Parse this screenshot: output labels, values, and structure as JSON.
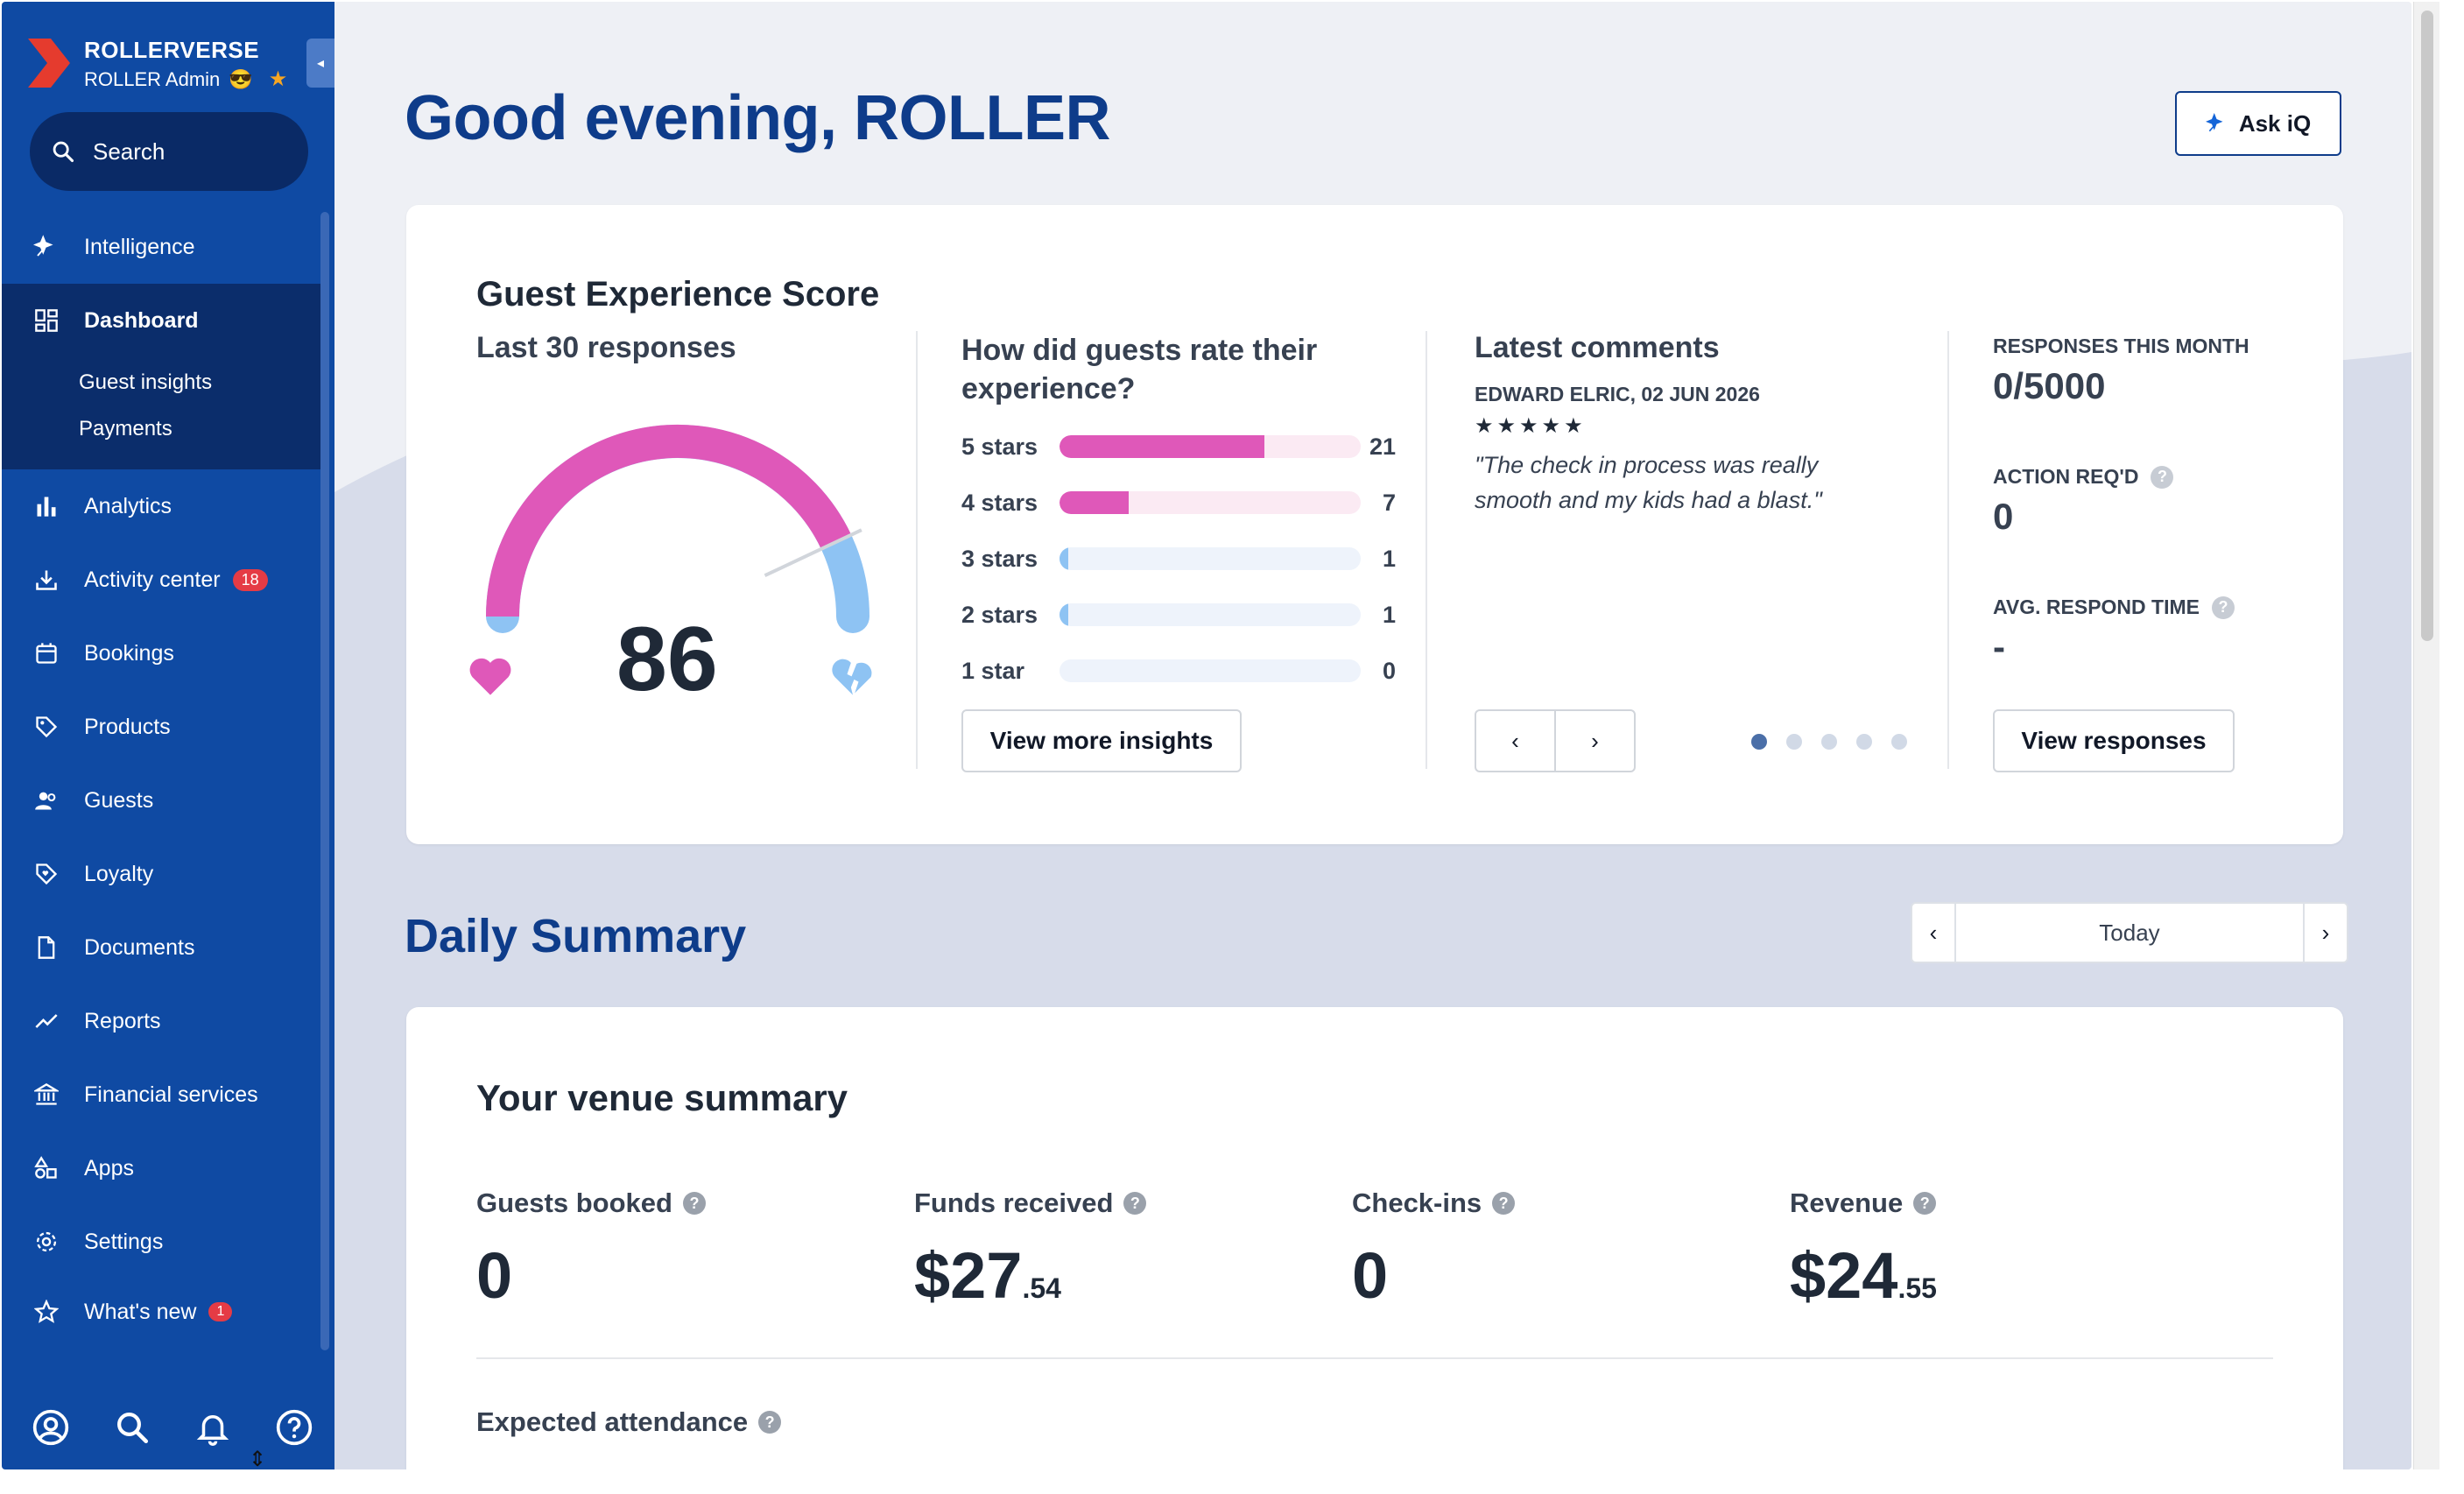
{
  "sidebar": {
    "brand_name": "ROLLERVERSE",
    "brand_role": "ROLLER Admin",
    "role_emoji": "😎",
    "search_label": "Search",
    "items": [
      {
        "label": "Intelligence",
        "icon": "intelligence-icon"
      },
      {
        "label": "Dashboard",
        "icon": "dashboard-icon"
      },
      {
        "label": "Analytics",
        "icon": "bar-chart-icon"
      },
      {
        "label": "Activity center",
        "icon": "download-icon",
        "badge": "18"
      },
      {
        "label": "Bookings",
        "icon": "calendar-icon"
      },
      {
        "label": "Products",
        "icon": "tag-icon"
      },
      {
        "label": "Guests",
        "icon": "people-icon"
      },
      {
        "label": "Loyalty",
        "icon": "loyalty-tag-icon"
      },
      {
        "label": "Documents",
        "icon": "document-icon"
      },
      {
        "label": "Reports",
        "icon": "trend-icon"
      },
      {
        "label": "Financial services",
        "icon": "bank-icon"
      },
      {
        "label": "Apps",
        "icon": "apps-icon"
      },
      {
        "label": "Settings",
        "icon": "gear-icon"
      },
      {
        "label": "What's new",
        "icon": "star-icon",
        "badge": "1"
      }
    ],
    "dashboard_sub": [
      "Guest insights",
      "Payments"
    ]
  },
  "header": {
    "greeting": "Good evening, ROLLER",
    "ask_label": "Ask iQ"
  },
  "ges": {
    "title": "Guest Experience Score",
    "subtitle": "Last 30 responses",
    "score": "86",
    "score_value": 86,
    "rating_title": "How did guests rate their experience?",
    "ratings": [
      {
        "label": "5 stars",
        "count": "21",
        "fill": 0.68,
        "color": "#df58b9",
        "track": "pink"
      },
      {
        "label": "4 stars",
        "count": "7",
        "fill": 0.23,
        "color": "#df58b9",
        "track": "pink"
      },
      {
        "label": "3 stars",
        "count": "1",
        "fill": 0.03,
        "color": "#8ec3f3",
        "track": "blue"
      },
      {
        "label": "2 stars",
        "count": "1",
        "fill": 0.03,
        "color": "#8ec3f3",
        "track": "blue"
      },
      {
        "label": "1 star",
        "count": "0",
        "fill": 0,
        "color": "#8ec3f3",
        "track": "blue"
      }
    ],
    "insights_button": "View more insights",
    "comments_title": "Latest comments",
    "comment_meta": "EDWARD ELRIC, 02 JUN 2026",
    "comment_stars": "★★★★★",
    "comment_text": "\"The check in process was really smooth and my kids had a blast.\"",
    "prev": "‹",
    "next": "›",
    "responses_label": "RESPONSES THIS MONTH",
    "responses_value": "0/5000",
    "action_label": "ACTION REQ'D",
    "action_value": "0",
    "respond_label": "AVG. RESPOND TIME",
    "respond_value": "-",
    "view_responses": "View responses"
  },
  "daily": {
    "title": "Daily Summary",
    "date_label": "Today",
    "prev": "‹",
    "next": "›"
  },
  "venue": {
    "title": "Your venue summary",
    "metrics": [
      {
        "label": "Guests booked",
        "value": "0",
        "cents": ""
      },
      {
        "label": "Funds received",
        "value": "$27",
        "cents": ".54"
      },
      {
        "label": "Check-ins",
        "value": "0",
        "cents": ""
      },
      {
        "label": "Revenue",
        "value": "$24",
        "cents": ".55"
      }
    ],
    "attendance_label": "Expected attendance"
  },
  "colors": {
    "sidebar": "#0f4aa3",
    "sidebar_active": "#0b2d6b",
    "brand_red": "#e53b2e",
    "title_blue": "#0e3c8a",
    "pink": "#df58b9",
    "light_blue": "#8ec3f3"
  }
}
